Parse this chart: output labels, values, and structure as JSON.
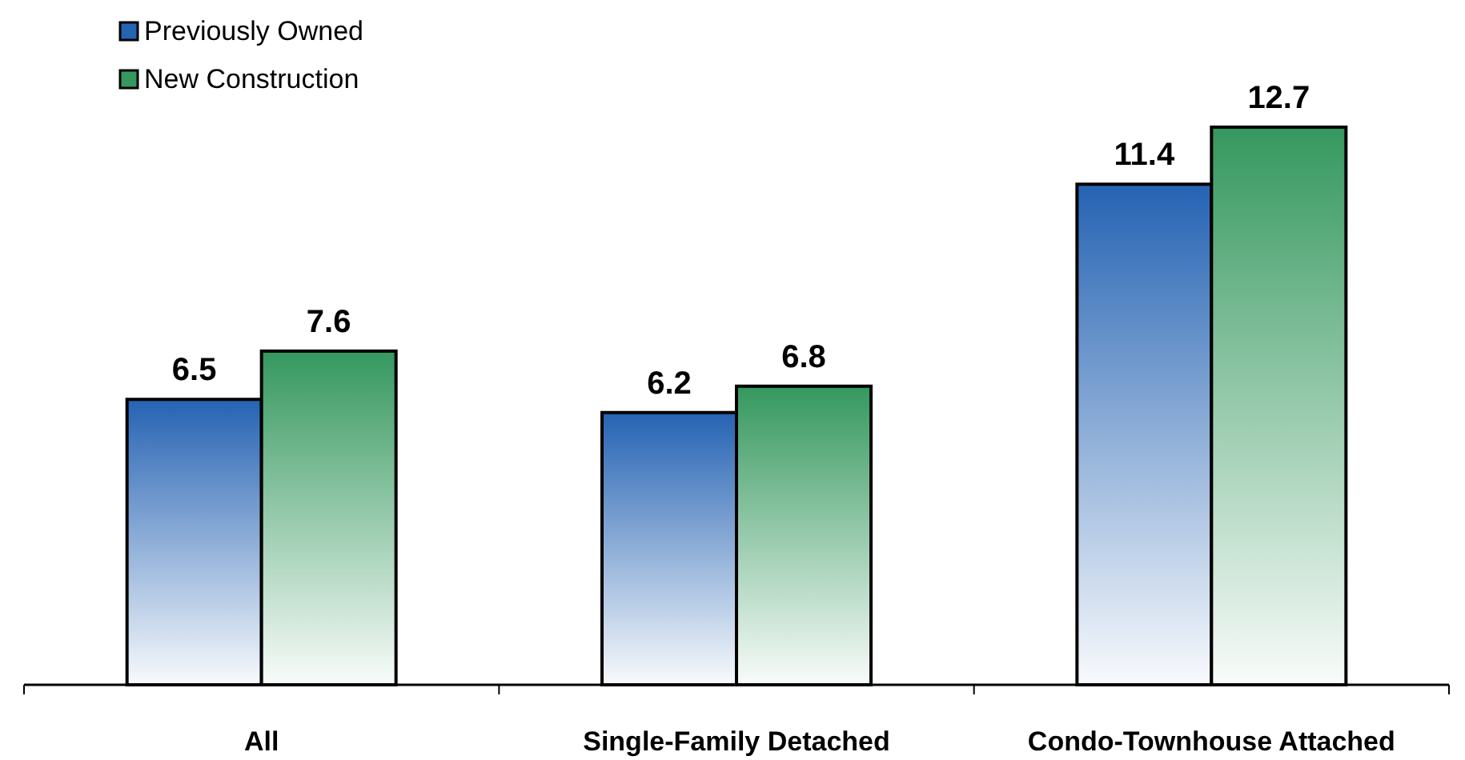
{
  "chart_data": {
    "type": "bar",
    "categories": [
      "All",
      "Single-Family Detached",
      "Condo-Townhouse Attached"
    ],
    "series": [
      {
        "name": "Previously Owned",
        "color": "#2563b3",
        "values": [
          6.5,
          6.2,
          11.4
        ]
      },
      {
        "name": "New Construction",
        "color": "#35985e",
        "values": [
          7.6,
          6.8,
          12.7
        ]
      }
    ],
    "data_labels": true,
    "legend": "top left",
    "grid": false
  }
}
